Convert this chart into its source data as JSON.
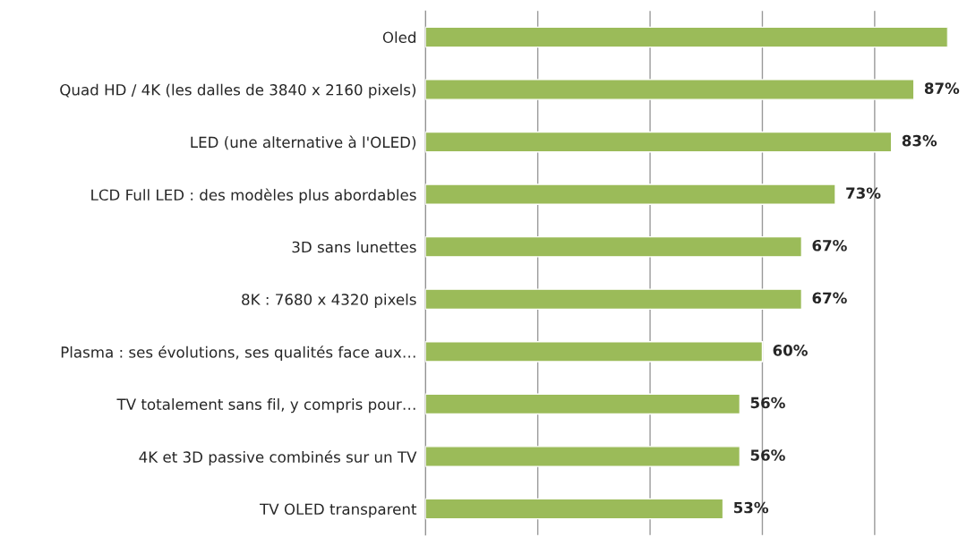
{
  "chart_data": {
    "type": "bar",
    "orientation": "horizontal",
    "categories": [
      "Oled",
      "Quad HD / 4K (les dalles de 3840 x 2160 pixels)",
      "LED (une alternative à l'OLED)",
      "LCD Full LED : des modèles plus abordables",
      "3D sans lunettes",
      "8K : 7680 x 4320 pixels",
      "Plasma : ses évolutions, ses qualités face aux…",
      "TV totalement sans fil, y compris pour…",
      "4K et 3D passive combinés sur un TV",
      "TV OLED transparent"
    ],
    "values": [
      93,
      87,
      83,
      73,
      67,
      67,
      60,
      56,
      56,
      53
    ],
    "value_labels": [
      null,
      "87%",
      "83%",
      "73%",
      "67%",
      "67%",
      "60%",
      "56%",
      "56%",
      "53%"
    ],
    "color": "#9bbb59",
    "xticks": [
      {
        "value": 0,
        "label": null
      },
      {
        "value": 20,
        "label": null
      },
      {
        "value": 40,
        "label": null
      },
      {
        "value": 60,
        "label": null
      },
      {
        "value": 80,
        "label": null
      }
    ],
    "grid": "x",
    "tick_labels": "y"
  }
}
